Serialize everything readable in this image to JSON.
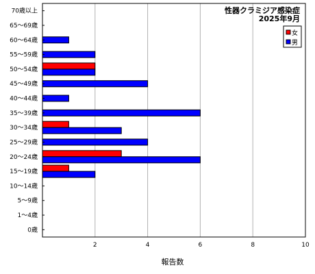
{
  "chart_data": {
    "type": "bar",
    "orientation": "horizontal",
    "title": "性器クラミジア感染症",
    "subtitle": "2025年9月",
    "xlabel": "報告数",
    "ylabel": "",
    "xlim": [
      0,
      10
    ],
    "xticks": [
      2,
      4,
      6,
      8,
      10
    ],
    "grid": true,
    "legend_position": "top-right",
    "categories": [
      "70歳以上",
      "65～69歳",
      "60～64歳",
      "55～59歳",
      "50～54歳",
      "45～49歳",
      "40～44歳",
      "35～39歳",
      "30～34歳",
      "25～29歳",
      "20～24歳",
      "15～19歳",
      "10～14歳",
      "5～9歳",
      "1～4歳",
      "0歳"
    ],
    "series": [
      {
        "name": "女",
        "color": "#ff0000",
        "values": [
          0,
          0,
          0,
          0,
          2,
          0,
          0,
          0,
          1,
          0,
          3,
          1,
          0,
          0,
          0,
          0
        ]
      },
      {
        "name": "男",
        "color": "#0000ff",
        "values": [
          0,
          0,
          1,
          2,
          2,
          4,
          1,
          6,
          3,
          4,
          6,
          2,
          0,
          0,
          0,
          0
        ]
      }
    ]
  }
}
